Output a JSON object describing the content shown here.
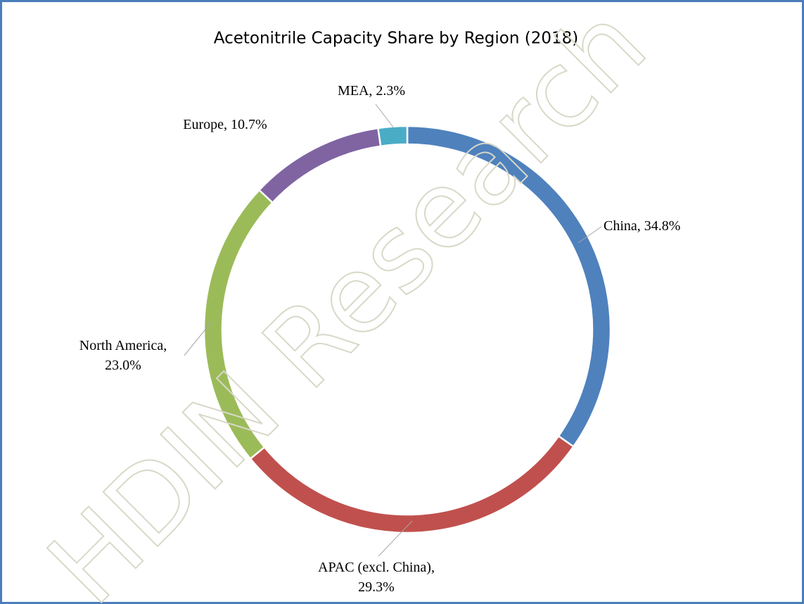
{
  "chart_data": {
    "type": "donut",
    "title": "Acetonitrile Capacity Share by Region (2018)",
    "categories": [
      "China",
      "APAC (excl. China)",
      "North America",
      "Europe",
      "MEA"
    ],
    "values": [
      34.8,
      29.3,
      23.0,
      10.7,
      2.3
    ],
    "value_labels": [
      "34.8%",
      "29.3%",
      "23.0%",
      "10.7%",
      "2.3%"
    ],
    "label_separator": ",",
    "colors": [
      "#4f81bd",
      "#c0504d",
      "#9bbb59",
      "#8064a2",
      "#4bacc6"
    ],
    "watermark": "HDIN Research"
  }
}
